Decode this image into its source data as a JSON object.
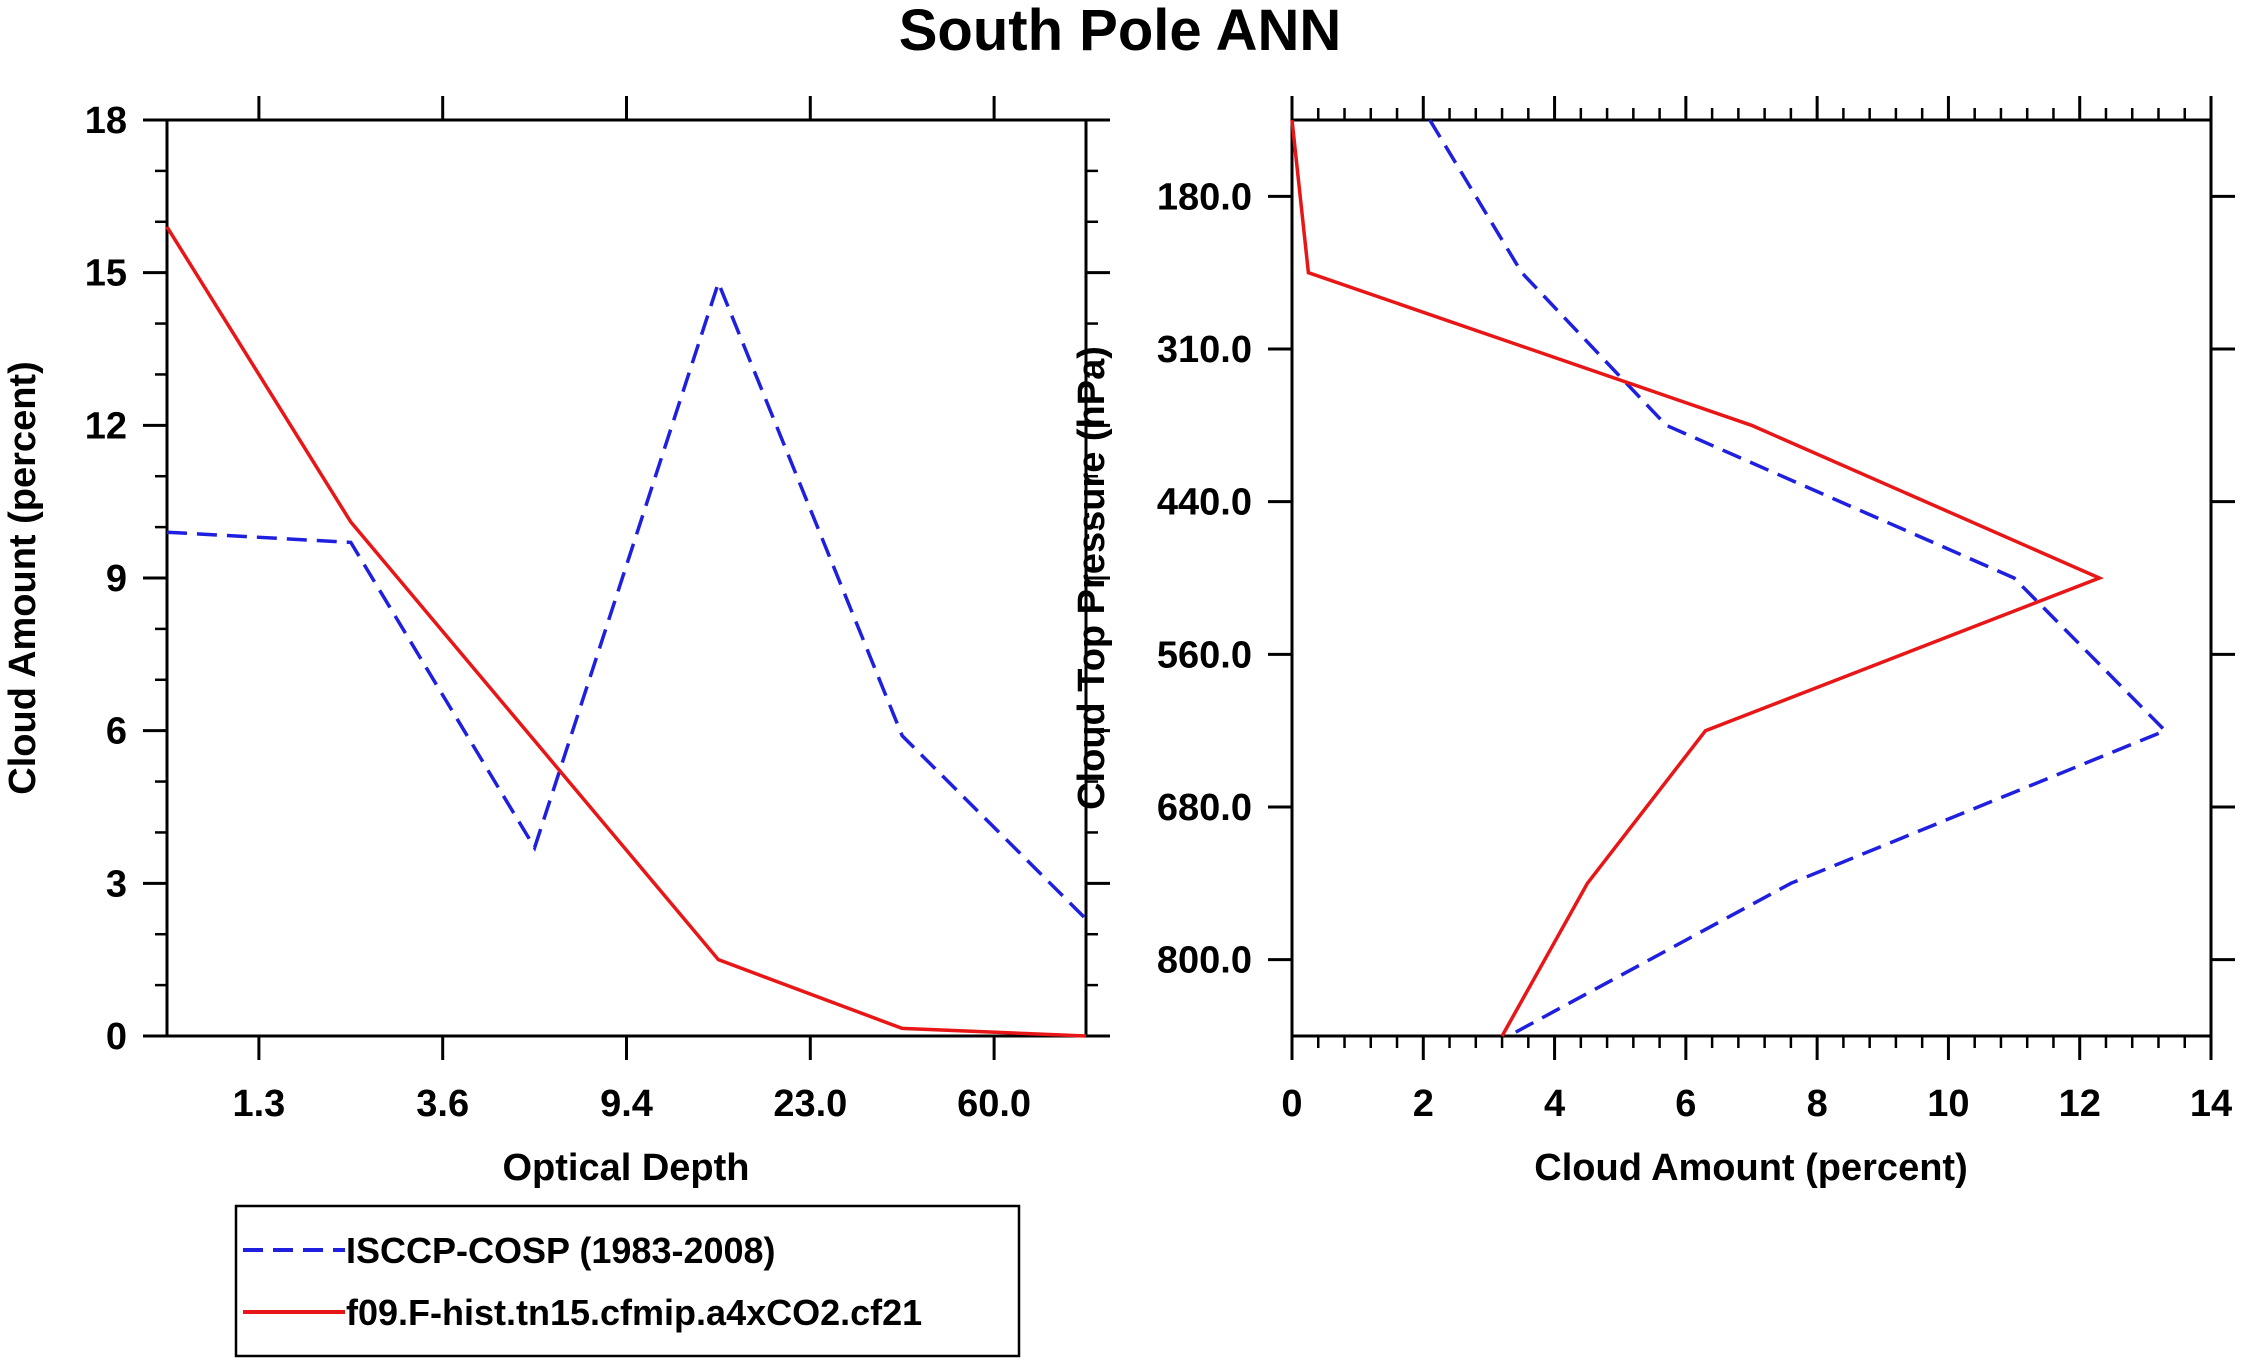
{
  "title": "South Pole ANN",
  "colors": {
    "obs": "#1f1fe0",
    "model": "#e81616",
    "axis": "#000000"
  },
  "legend": {
    "entries": [
      {
        "label": "ISCCP-COSP (1983-2008)",
        "style": "dashed",
        "color": "#1f1fe0"
      },
      {
        "label": "f09.F-hist.tn15.cfmip.a4xCO2.cf21",
        "style": "solid",
        "color": "#e81616"
      }
    ]
  },
  "chart_data": [
    {
      "type": "line",
      "xlabel": "Optical Depth",
      "ylabel": "Cloud Amount (percent)",
      "x_index_range": [
        0,
        5
      ],
      "xticks": [
        {
          "pos": 0.5,
          "label": "1.3"
        },
        {
          "pos": 1.5,
          "label": "3.6"
        },
        {
          "pos": 2.5,
          "label": "9.4"
        },
        {
          "pos": 3.5,
          "label": "23.0"
        },
        {
          "pos": 4.5,
          "label": "60.0"
        }
      ],
      "ylim": [
        0,
        18
      ],
      "yticks": [
        0,
        3,
        6,
        9,
        12,
        15,
        18
      ],
      "y_minor_step": 1,
      "series": [
        {
          "name": "ISCCP-COSP (1983-2008)",
          "style": "dashed",
          "x": [
            0,
            1,
            2,
            3,
            4,
            5
          ],
          "y": [
            9.9,
            9.7,
            3.7,
            14.8,
            5.9,
            2.3
          ]
        },
        {
          "name": "f09.F-hist.tn15.cfmip.a4xCO2.cf21",
          "style": "solid",
          "x": [
            0,
            1,
            2,
            3,
            4,
            5
          ],
          "y": [
            15.9,
            10.1,
            5.8,
            1.5,
            0.15,
            0.0
          ]
        }
      ]
    },
    {
      "type": "line",
      "orientation": "vertical-profile",
      "xlabel": "Cloud Amount (percent)",
      "ylabel": "Cloud Top Pressure (hPa)",
      "xlim": [
        0,
        14
      ],
      "xticks": [
        0,
        2,
        4,
        6,
        8,
        10,
        12,
        14
      ],
      "x_minor_step": 0.4,
      "y_index_range": [
        0,
        6
      ],
      "yticks": [
        {
          "pos": 0.5,
          "label": "180.0"
        },
        {
          "pos": 1.5,
          "label": "310.0"
        },
        {
          "pos": 2.5,
          "label": "440.0"
        },
        {
          "pos": 3.5,
          "label": "560.0"
        },
        {
          "pos": 4.5,
          "label": "680.0"
        },
        {
          "pos": 5.5,
          "label": "800.0"
        }
      ],
      "series": [
        {
          "name": "ISCCP-COSP (1983-2008)",
          "style": "dashed",
          "amount": [
            2.1,
            3.5,
            5.7,
            11.0,
            13.3,
            7.6,
            3.3
          ],
          "level": [
            0,
            1,
            2,
            3,
            4,
            5,
            6
          ]
        },
        {
          "name": "f09.F-hist.tn15.cfmip.a4xCO2.cf21",
          "style": "solid",
          "amount": [
            0.0,
            0.25,
            7.0,
            12.3,
            6.3,
            4.5,
            3.2
          ],
          "level": [
            0,
            1,
            2,
            3,
            4,
            5,
            6
          ]
        }
      ]
    }
  ]
}
